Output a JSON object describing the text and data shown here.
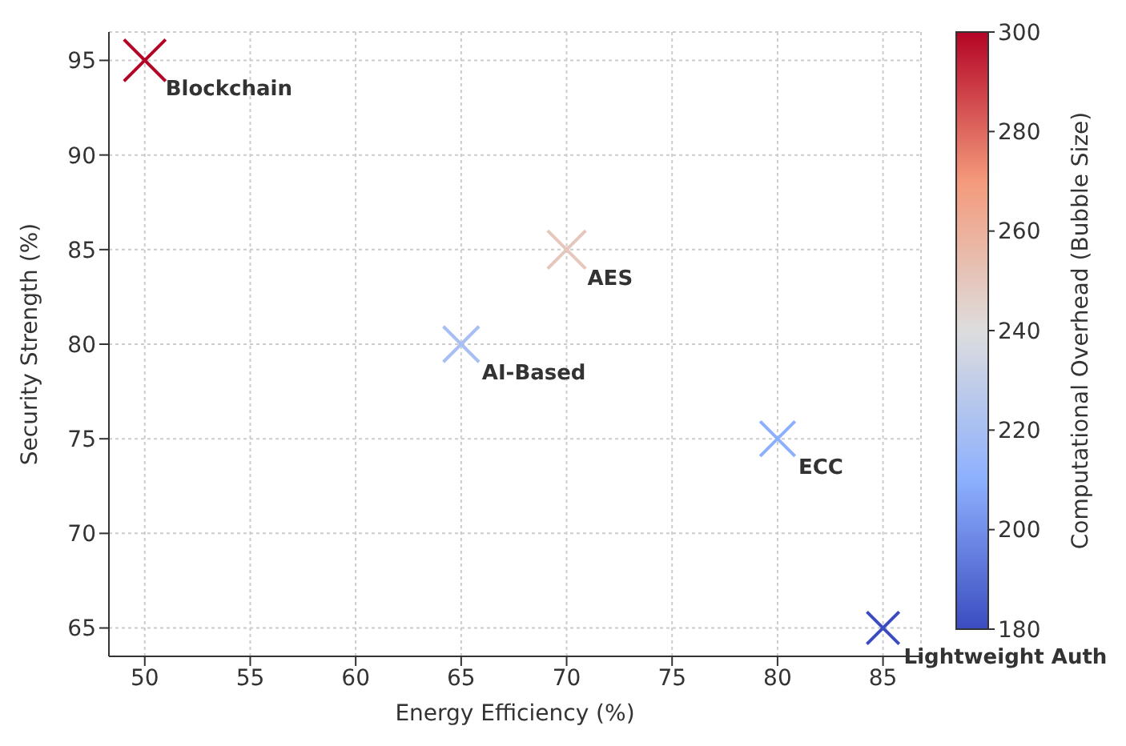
{
  "chart_data": {
    "type": "bubble",
    "xlabel": "Energy Efficiency (%)",
    "ylabel": "Security Strength (%)",
    "clabel": "Computational Overhead (Bubble Size)",
    "x": [
      50,
      70,
      65,
      80,
      85
    ],
    "values": [
      95,
      85,
      80,
      75,
      65
    ],
    "cvalues": [
      300,
      250,
      220,
      210,
      180
    ],
    "sizes": [
      1,
      0.833,
      0.733,
      0.7,
      0.6
    ],
    "clim": [
      180,
      300
    ],
    "cticks": [
      180,
      200,
      220,
      240,
      260,
      280,
      300
    ],
    "xlim": [
      48.3,
      86.8
    ],
    "xticks": [
      50,
      55,
      60,
      65,
      70,
      75,
      80,
      85
    ],
    "ylim": [
      63.5,
      96.5
    ],
    "yticks": [
      65,
      70,
      75,
      80,
      85,
      90,
      95
    ],
    "grid": true,
    "marker": "cross",
    "annotations": [
      {
        "text": "Blockchain",
        "x": 50,
        "y": 95
      },
      {
        "text": "AES",
        "x": 70,
        "y": 85
      },
      {
        "text": "AI-Based",
        "x": 65,
        "y": 80
      },
      {
        "text": "ECC",
        "x": 80,
        "y": 75
      },
      {
        "text": "Lightweight Auth",
        "x": 85,
        "y": 65
      }
    ]
  }
}
